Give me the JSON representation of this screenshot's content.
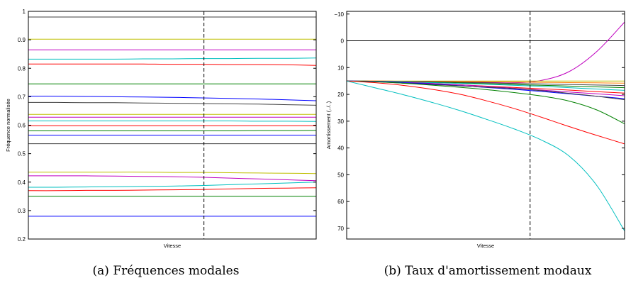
{
  "chart_data": [
    {
      "type": "line",
      "xlabel": "Vitesse",
      "ylabel": "Fréquence normalisée",
      "ylim": [
        0.2,
        1.0
      ],
      "y_inverted": false,
      "yticks": [
        0.2,
        0.3,
        0.4,
        0.5,
        0.6,
        0.7,
        0.8,
        0.9,
        1
      ],
      "ytick_labels": [
        "0.2",
        "0.3",
        "0.4",
        "0.5",
        "0.6",
        "0.7",
        "0.8",
        "0.9",
        "1"
      ],
      "xlim": [
        0,
        1
      ],
      "xticks_shown": false,
      "vline_dashed_at": 0.61,
      "grid": false,
      "caption": "(a)  Fréquences modales",
      "x": [
        0,
        0.1,
        0.2,
        0.3,
        0.4,
        0.5,
        0.6,
        0.7,
        0.8,
        0.9,
        1.0
      ],
      "series": [
        {
          "color": "#0000ff",
          "values": [
            0.28,
            0.28,
            0.28,
            0.28,
            0.28,
            0.28,
            0.28,
            0.28,
            0.28,
            0.28,
            0.28
          ]
        },
        {
          "color": "#008000",
          "values": [
            0.35,
            0.35,
            0.35,
            0.35,
            0.35,
            0.35,
            0.35,
            0.35,
            0.35,
            0.35,
            0.35
          ]
        },
        {
          "color": "#ff0000",
          "values": [
            0.37,
            0.37,
            0.371,
            0.371,
            0.372,
            0.373,
            0.374,
            0.376,
            0.378,
            0.379,
            0.38
          ]
        },
        {
          "color": "#00bfbf",
          "values": [
            0.382,
            0.382,
            0.383,
            0.384,
            0.385,
            0.386,
            0.388,
            0.391,
            0.394,
            0.397,
            0.4
          ]
        },
        {
          "color": "#bf00bf",
          "values": [
            0.422,
            0.422,
            0.422,
            0.421,
            0.42,
            0.419,
            0.417,
            0.414,
            0.411,
            0.408,
            0.405
          ]
        },
        {
          "color": "#bfbf00",
          "values": [
            0.435,
            0.435,
            0.435,
            0.435,
            0.435,
            0.434,
            0.434,
            0.433,
            0.432,
            0.431,
            0.43
          ]
        },
        {
          "color": "#404040",
          "values": [
            0.535,
            0.535,
            0.535,
            0.535,
            0.535,
            0.535,
            0.535,
            0.535,
            0.535,
            0.535,
            0.535
          ]
        },
        {
          "color": "#0000ff",
          "values": [
            0.565,
            0.565,
            0.565,
            0.565,
            0.565,
            0.565,
            0.565,
            0.565,
            0.565,
            0.565,
            0.565
          ]
        },
        {
          "color": "#008000",
          "values": [
            0.58,
            0.58,
            0.58,
            0.58,
            0.58,
            0.58,
            0.58,
            0.58,
            0.581,
            0.581,
            0.582
          ]
        },
        {
          "color": "#ff0000",
          "values": [
            0.598,
            0.598,
            0.598,
            0.598,
            0.598,
            0.598,
            0.598,
            0.598,
            0.598,
            0.598,
            0.598
          ]
        },
        {
          "color": "#00bfbf",
          "values": [
            0.615,
            0.615,
            0.615,
            0.615,
            0.615,
            0.615,
            0.615,
            0.615,
            0.614,
            0.614,
            0.613
          ]
        },
        {
          "color": "#bf00bf",
          "values": [
            0.628,
            0.628,
            0.628,
            0.628,
            0.628,
            0.628,
            0.628,
            0.628,
            0.628,
            0.628,
            0.628
          ]
        },
        {
          "color": "#bfbf00",
          "values": [
            0.638,
            0.638,
            0.638,
            0.638,
            0.638,
            0.638,
            0.638,
            0.638,
            0.638,
            0.638,
            0.638
          ]
        },
        {
          "color": "#404040",
          "values": [
            0.68,
            0.68,
            0.679,
            0.679,
            0.678,
            0.677,
            0.676,
            0.675,
            0.674,
            0.672,
            0.67
          ]
        },
        {
          "color": "#0000ff",
          "values": [
            0.702,
            0.702,
            0.701,
            0.7,
            0.699,
            0.698,
            0.696,
            0.694,
            0.692,
            0.689,
            0.686
          ]
        },
        {
          "color": "#008000",
          "values": [
            0.745,
            0.745,
            0.745,
            0.745,
            0.745,
            0.745,
            0.745,
            0.745,
            0.745,
            0.745,
            0.745
          ]
        },
        {
          "color": "#ff0000",
          "values": [
            0.815,
            0.815,
            0.815,
            0.815,
            0.815,
            0.814,
            0.814,
            0.813,
            0.813,
            0.812,
            0.81
          ]
        },
        {
          "color": "#00bfbf",
          "values": [
            0.832,
            0.832,
            0.832,
            0.832,
            0.833,
            0.833,
            0.834,
            0.834,
            0.835,
            0.835,
            0.836
          ]
        },
        {
          "color": "#bf00bf",
          "values": [
            0.865,
            0.865,
            0.865,
            0.865,
            0.865,
            0.865,
            0.865,
            0.865,
            0.865,
            0.865,
            0.865
          ]
        },
        {
          "color": "#bfbf00",
          "values": [
            0.902,
            0.902,
            0.902,
            0.902,
            0.902,
            0.902,
            0.902,
            0.902,
            0.902,
            0.902,
            0.902
          ]
        },
        {
          "color": "#404040",
          "values": [
            0.98,
            0.98,
            0.98,
            0.98,
            0.98,
            0.98,
            0.98,
            0.98,
            0.98,
            0.98,
            0.98
          ]
        }
      ]
    },
    {
      "type": "line",
      "xlabel": "Vitesse",
      "ylabel": "Amortissement (../..)",
      "ylim": [
        -11,
        74
      ],
      "y_inverted": true,
      "yticks": [
        -10,
        0,
        10,
        20,
        30,
        40,
        50,
        60,
        70
      ],
      "ytick_labels": [
        "−10",
        "0",
        "10",
        "20",
        "30",
        "40",
        "50",
        "60",
        "70"
      ],
      "xlim": [
        0,
        1
      ],
      "xticks_shown": false,
      "vline_dashed_at": 0.66,
      "grid": false,
      "caption": "(b)  Taux d'amortissement modaux",
      "x": [
        0,
        0.1,
        0.2,
        0.3,
        0.4,
        0.5,
        0.6,
        0.7,
        0.8,
        0.9,
        1.0
      ],
      "series": [
        {
          "color": "#000000",
          "values": [
            0,
            0,
            0,
            0,
            0,
            0,
            0,
            0,
            0,
            0,
            0
          ]
        },
        {
          "color": "#bf00bf",
          "values": [
            15,
            15,
            15.1,
            15.2,
            15.3,
            15.5,
            15.7,
            14.8,
            11.5,
            4,
            -7
          ]
        },
        {
          "color": "#bfbf00",
          "values": [
            15,
            15,
            15,
            15,
            15,
            15,
            15,
            15,
            15,
            15,
            15
          ]
        },
        {
          "color": "#ff8000",
          "values": [
            15,
            15,
            15.1,
            15.1,
            15.2,
            15.3,
            15.4,
            15.5,
            15.6,
            15.7,
            15.8
          ]
        },
        {
          "color": "#404040",
          "values": [
            15,
            15.1,
            15.2,
            15.3,
            15.5,
            15.7,
            15.9,
            16.1,
            16.3,
            16.5,
            16.7
          ]
        },
        {
          "color": "#008000",
          "values": [
            15,
            15.1,
            15.3,
            15.5,
            15.7,
            16,
            16.3,
            16.6,
            16.9,
            17.2,
            17.5
          ]
        },
        {
          "color": "#00bfbf",
          "values": [
            15,
            15.1,
            15.3,
            15.6,
            15.9,
            16.2,
            16.6,
            17,
            17.5,
            18,
            18.5
          ]
        },
        {
          "color": "#ff0000",
          "values": [
            15,
            15.2,
            15.5,
            15.9,
            16.4,
            16.9,
            17.4,
            17.9,
            18.4,
            19,
            19.5
          ]
        },
        {
          "color": "#bf00bf",
          "values": [
            15,
            15.2,
            15.5,
            15.9,
            16.4,
            17,
            17.7,
            18.4,
            19.1,
            19.8,
            20.5
          ]
        },
        {
          "color": "#0000ff",
          "values": [
            15,
            15.2,
            15.6,
            16.1,
            16.7,
            17.4,
            18.1,
            18.9,
            19.8,
            20.7,
            21.6
          ]
        },
        {
          "color": "#404040",
          "values": [
            15,
            15.3,
            15.8,
            16.3,
            16.8,
            17.3,
            17.8,
            18.6,
            19.6,
            20.7,
            22
          ]
        },
        {
          "color": "#008000",
          "values": [
            15,
            15.3,
            15.8,
            16.5,
            17.3,
            18.2,
            19.3,
            20.6,
            22.5,
            25.8,
            31
          ]
        },
        {
          "color": "#ff0000",
          "values": [
            15,
            15.6,
            16.6,
            18,
            19.8,
            22.3,
            25.2,
            28.5,
            32,
            35.3,
            38.5
          ]
        },
        {
          "color": "#00bfbf",
          "values": [
            15,
            17.5,
            20,
            22.8,
            25.8,
            29.2,
            32.8,
            37,
            43,
            54,
            71
          ]
        }
      ]
    }
  ]
}
